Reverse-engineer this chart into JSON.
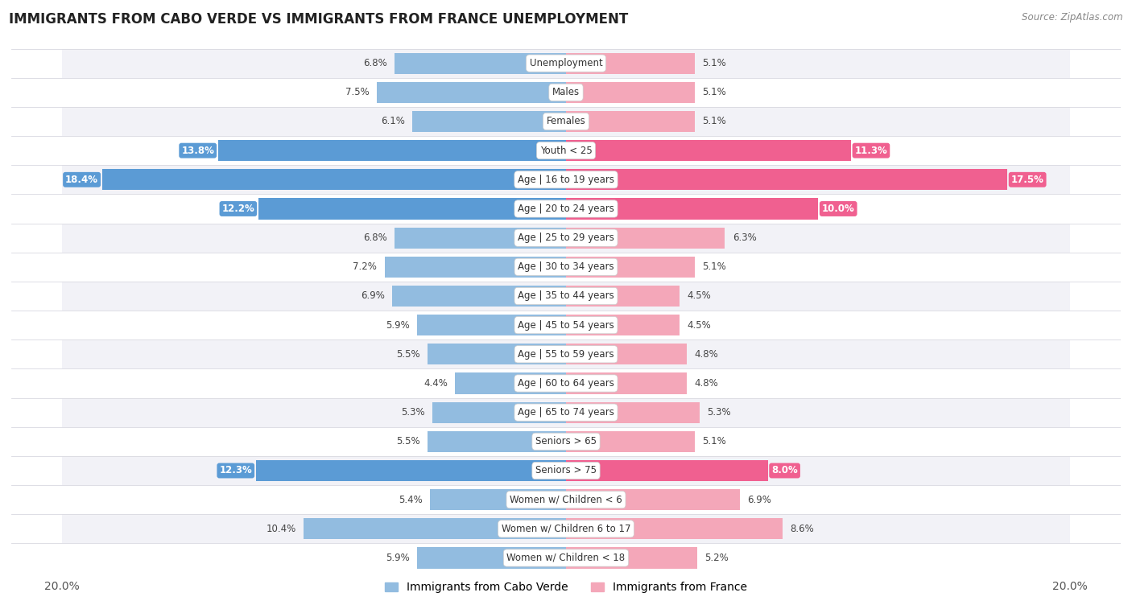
{
  "title": "IMMIGRANTS FROM CABO VERDE VS IMMIGRANTS FROM FRANCE UNEMPLOYMENT",
  "source": "Source: ZipAtlas.com",
  "categories": [
    "Unemployment",
    "Males",
    "Females",
    "Youth < 25",
    "Age | 16 to 19 years",
    "Age | 20 to 24 years",
    "Age | 25 to 29 years",
    "Age | 30 to 34 years",
    "Age | 35 to 44 years",
    "Age | 45 to 54 years",
    "Age | 55 to 59 years",
    "Age | 60 to 64 years",
    "Age | 65 to 74 years",
    "Seniors > 65",
    "Seniors > 75",
    "Women w/ Children < 6",
    "Women w/ Children 6 to 17",
    "Women w/ Children < 18"
  ],
  "cabo_verde": [
    6.8,
    7.5,
    6.1,
    13.8,
    18.4,
    12.2,
    6.8,
    7.2,
    6.9,
    5.9,
    5.5,
    4.4,
    5.3,
    5.5,
    12.3,
    5.4,
    10.4,
    5.9
  ],
  "france": [
    5.1,
    5.1,
    5.1,
    11.3,
    17.5,
    10.0,
    6.3,
    5.1,
    4.5,
    4.5,
    4.8,
    4.8,
    5.3,
    5.1,
    8.0,
    6.9,
    8.6,
    5.2
  ],
  "cabo_verde_color": "#92bce0",
  "france_color": "#f4a7b9",
  "cabo_verde_highlight_color": "#5b9bd5",
  "france_highlight_color": "#f06090",
  "highlight_rows": [
    3,
    4,
    5,
    14
  ],
  "axis_max": 20.0,
  "label_fontsize": 8.5,
  "category_fontsize": 8.5,
  "title_fontsize": 12,
  "row_bg_even": "#f2f2f7",
  "row_bg_odd": "#ffffff",
  "separator_color": "#d8d8e0"
}
